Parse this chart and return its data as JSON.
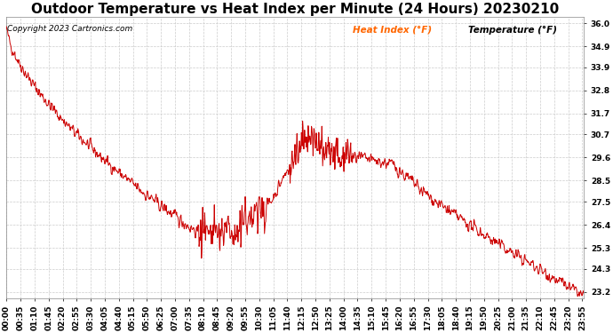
{
  "title": "Outdoor Temperature vs Heat Index per Minute (24 Hours) 20230210",
  "copyright_text": "Copyright 2023 Cartronics.com",
  "legend_heat_index": "Heat Index (°F)",
  "legend_temperature": "Temperature (°F)",
  "legend_heat_color": "#ff6600",
  "legend_temp_color": "#000000",
  "line_color": "#cc0000",
  "background_color": "#ffffff",
  "plot_background": "#ffffff",
  "grid_color": "#cccccc",
  "yticks": [
    23.2,
    24.3,
    25.3,
    26.4,
    27.5,
    28.5,
    29.6,
    30.7,
    31.7,
    32.8,
    33.9,
    34.9,
    36.0
  ],
  "ylim_min": 22.9,
  "ylim_max": 36.3,
  "xtick_interval_min": 35,
  "title_fontsize": 11,
  "axis_fontsize": 6.5,
  "copyright_fontsize": 6.5
}
